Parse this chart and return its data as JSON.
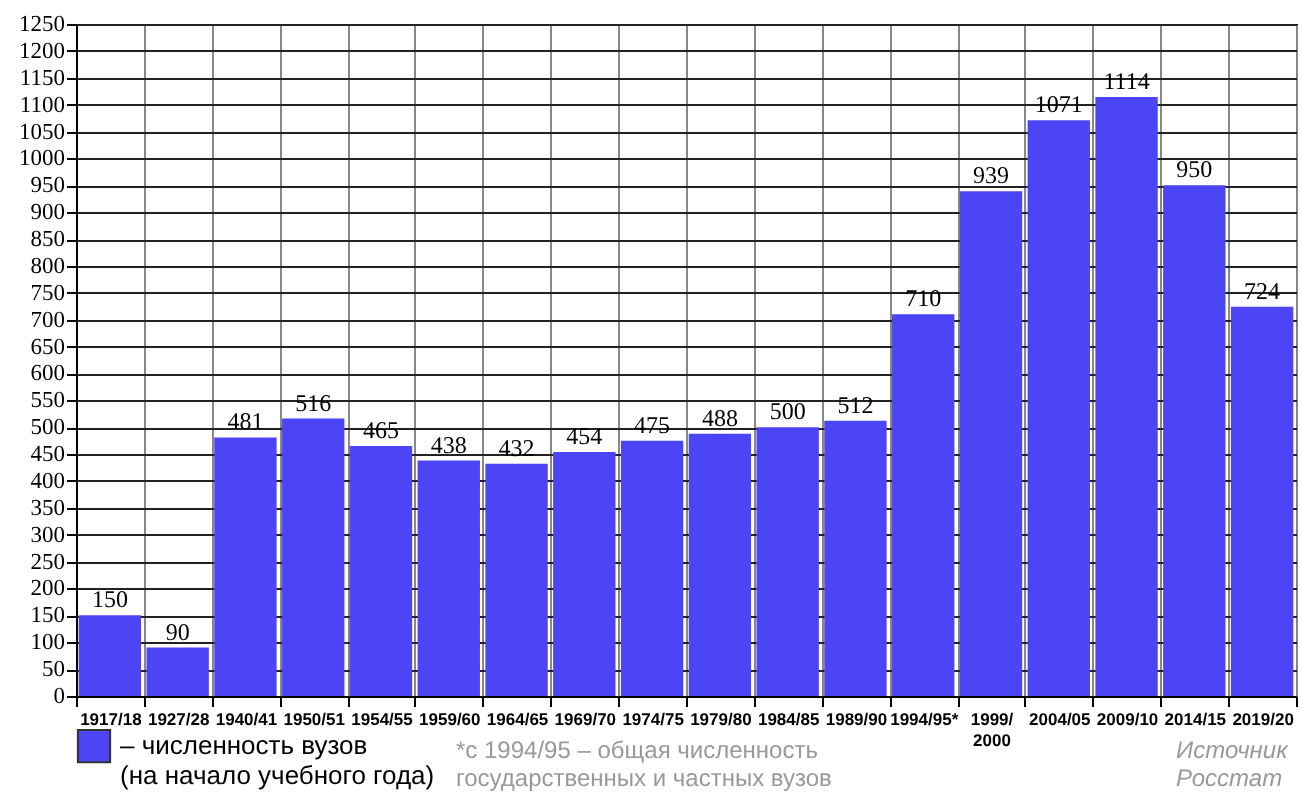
{
  "chart_data": {
    "type": "bar",
    "categories": [
      "1917/18",
      "1927/28",
      "1940/41",
      "1950/51",
      "1954/55",
      "1959/60",
      "1964/65",
      "1969/70",
      "1974/75",
      "1979/80",
      "1984/85",
      "1989/90",
      "1994/95*",
      "1999/ 2000",
      "2004/05",
      "2009/10",
      "2014/15",
      "2019/20"
    ],
    "series": [
      {
        "name": "– численность вузов (на начало учебного года)",
        "color": "#4b45f5",
        "values": [
          150,
          90,
          481,
          516,
          465,
          438,
          432,
          454,
          475,
          488,
          500,
          512,
          710,
          939,
          1071,
          1114,
          950,
          724
        ]
      }
    ],
    "ylim": [
      0,
      1250
    ],
    "yticks": [
      0,
      50,
      100,
      150,
      200,
      250,
      300,
      350,
      400,
      450,
      500,
      550,
      600,
      650,
      700,
      750,
      800,
      850,
      900,
      950,
      1000,
      1050,
      1100,
      1150,
      1200,
      1250
    ],
    "data_labels": true,
    "grid": true,
    "legend": "bottom left",
    "annotations": [
      "*с 1994/95 – общая численность государственных и частных вузов",
      "Источник Росстат"
    ]
  }
}
